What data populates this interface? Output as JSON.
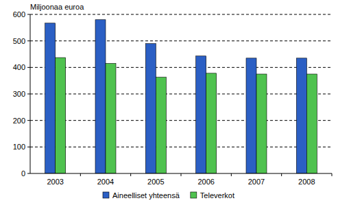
{
  "chart_data": {
    "type": "bar",
    "y_label": "Miljoonaa euroa",
    "categories": [
      "2003",
      "2004",
      "2005",
      "2006",
      "2007",
      "2008"
    ],
    "series": [
      {
        "name": "Aineelliset yhteensä",
        "color": "#2b5fc4",
        "values": [
          567,
          580,
          490,
          443,
          435,
          435
        ]
      },
      {
        "name": "Televerkot",
        "color": "#4fc24f",
        "values": [
          437,
          415,
          363,
          378,
          375,
          375
        ]
      }
    ],
    "ylim": [
      0,
      600
    ],
    "yticks": [
      0,
      100,
      200,
      300,
      400,
      500,
      600
    ],
    "grid": true,
    "legend": "bottom"
  }
}
